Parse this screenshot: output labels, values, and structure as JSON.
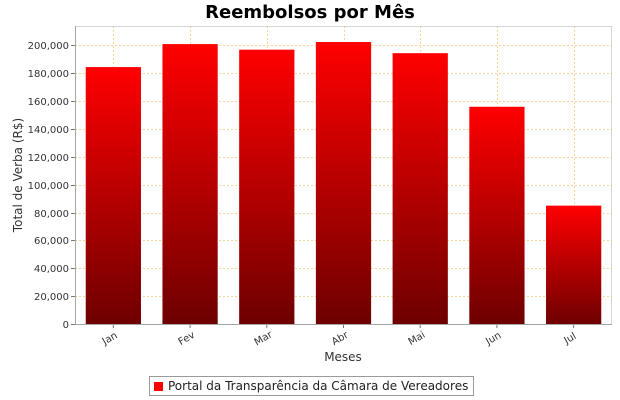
{
  "chart_data": {
    "type": "bar",
    "title": "Reembolsos por Mês",
    "xlabel": "Meses",
    "ylabel": "Total de Verba (R$)",
    "categories": [
      "Jan",
      "Fev",
      "Mar",
      "Abr",
      "Mai",
      "Jun",
      "Jul"
    ],
    "series": [
      {
        "name": "Portal da Transparência da Câmara de Vereadores",
        "values": [
          184500,
          201000,
          197000,
          202500,
          194500,
          156000,
          85000
        ],
        "color": "#ff0000"
      }
    ],
    "ylim": [
      0,
      214000
    ],
    "yticks": [
      0,
      20000,
      40000,
      60000,
      80000,
      100000,
      120000,
      140000,
      160000,
      180000,
      200000
    ],
    "ytick_labels": [
      "0",
      "20,000",
      "40,000",
      "60,000",
      "80,000",
      "100,000",
      "120,000",
      "140,000",
      "160,000",
      "180,000",
      "200,000"
    ],
    "grid": true,
    "legend_position": "bottom"
  }
}
